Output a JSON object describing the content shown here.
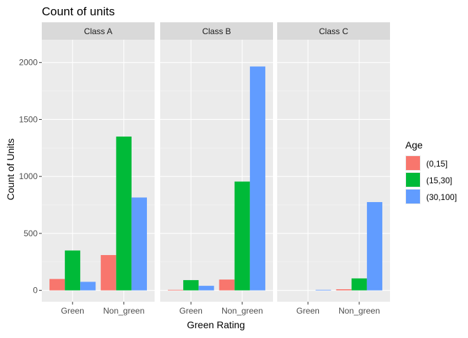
{
  "chart_data": {
    "type": "bar",
    "title": "Count of units",
    "xlabel": "Green Rating",
    "ylabel": "Count of Units",
    "ylim": [
      -100,
      2200
    ],
    "yticks": [
      0,
      500,
      1000,
      1500,
      2000
    ],
    "categories": [
      "Green",
      "Non_green"
    ],
    "legend": {
      "title": "Age",
      "position": "right",
      "items": [
        {
          "label": "(0,15]",
          "color": "#F8766D"
        },
        {
          "label": "(15,30]",
          "color": "#00BA38"
        },
        {
          "label": "(30,100]",
          "color": "#619CFF"
        }
      ]
    },
    "facets": [
      {
        "label": "Class A",
        "series": [
          {
            "name": "(0,15]",
            "values": [
              100,
              310
            ]
          },
          {
            "name": "(15,30]",
            "values": [
              350,
              1350
            ]
          },
          {
            "name": "(30,100]",
            "values": [
              75,
              815
            ]
          }
        ]
      },
      {
        "label": "Class B",
        "series": [
          {
            "name": "(0,15]",
            "values": [
              5,
              95
            ]
          },
          {
            "name": "(15,30]",
            "values": [
              90,
              955
            ]
          },
          {
            "name": "(30,100]",
            "values": [
              40,
              1965
            ]
          }
        ]
      },
      {
        "label": "Class C",
        "series": [
          {
            "name": "(0,15]",
            "values": [
              0,
              10
            ]
          },
          {
            "name": "(15,30]",
            "values": [
              0,
              105
            ]
          },
          {
            "name": "(30,100]",
            "values": [
              5,
              775
            ]
          }
        ]
      }
    ],
    "grid": true,
    "panel_background": "#EBEBEB",
    "strip_background": "#D9D9D9"
  }
}
